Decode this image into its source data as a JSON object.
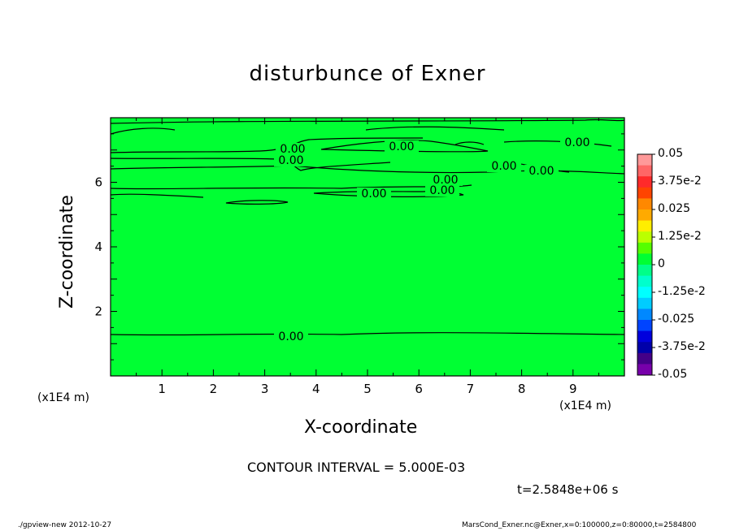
{
  "chart_data": {
    "type": "contour",
    "title": "disturbunce of Exner",
    "xlabel": "X-coordinate",
    "ylabel": "Z-coordinate",
    "x_unit": "(x1E4 m)",
    "xlim": [
      0,
      10
    ],
    "ylim": [
      0,
      8
    ],
    "x_ticks": [
      "1",
      "2",
      "3",
      "4",
      "5",
      "6",
      "7",
      "8",
      "9"
    ],
    "y_ticks": [
      "2",
      "4",
      "6"
    ],
    "fill_color": "#00ff33",
    "contour_labels": [
      "0.00",
      "0.00",
      "0.00",
      "0.00",
      "0.00",
      "0.00",
      "0.00",
      "0.00",
      "0.00",
      "0.00"
    ],
    "colorbar": {
      "labels": [
        "0.05",
        "3.75e-2",
        "0.025",
        "1.25e-2",
        "0",
        "-1.25e-2",
        "-0.025",
        "-3.75e-2",
        "-0.05"
      ],
      "colors": [
        "#ff9999",
        "#ff6666",
        "#ff2a2a",
        "#ff4400",
        "#ff8800",
        "#ffaa00",
        "#ffee00",
        "#bbff00",
        "#55ff00",
        "#00ff33",
        "#00ff88",
        "#00ffcc",
        "#00ffff",
        "#00ccff",
        "#0088ff",
        "#0044ff",
        "#0000dd",
        "#0000aa",
        "#440088",
        "#7700aa"
      ]
    },
    "contour_interval_text": "CONTOUR INTERVAL = 5.000E-03",
    "time_text": "t=2.5848e+06 s"
  },
  "footer": {
    "left": "./gpview-new  2012-10-27",
    "right": "MarsCond_Exner.nc@Exner,x=0:100000,z=0:80000,t=2584800"
  }
}
